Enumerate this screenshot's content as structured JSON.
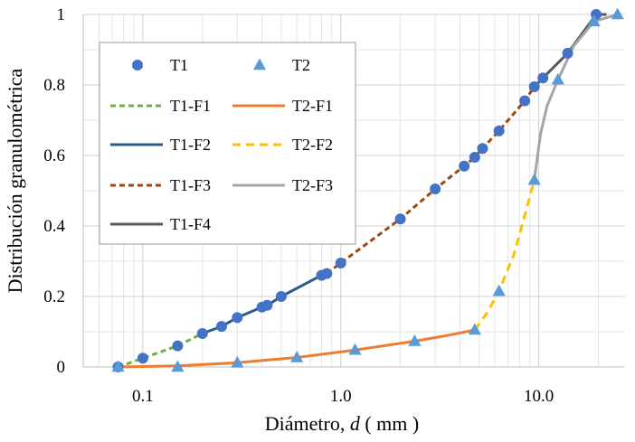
{
  "chart_data": {
    "type": "line",
    "x_scale": "log",
    "xlim": [
      0.05,
      27
    ],
    "ylim": [
      0,
      1
    ],
    "xlabel_main": "Diámetro, ",
    "xlabel_var": "d",
    "xlabel_unit": " ( mm )",
    "ylabel": "Distribución granulométrica",
    "x_ticks": [
      "0.1",
      "1.0",
      "10.0"
    ],
    "y_ticks": [
      "0",
      "0.2",
      "0.4",
      "0.6",
      "0.8",
      "1"
    ],
    "grid": true,
    "legend_position": "top-left",
    "legend_labels": {
      "T1": "T1",
      "T2": "T2",
      "T1-F1": "T1-F1",
      "T2-F1": "T2-F1",
      "T1-F2": "T1-F2",
      "T2-F2": "T2-F2",
      "T1-F3": "T1-F3",
      "T2-F3": "T2-F3",
      "T1-F4": "T1-F4"
    },
    "colors": {
      "T1": "#4472c4",
      "T2": "#5b9bd5",
      "T1-F1": "#70ad47",
      "T1-F2": "#2e5c8a",
      "T1-F3": "#9e480e",
      "T1-F4": "#595959",
      "T2-F1": "#ed7d31",
      "T2-F2": "#ffc000",
      "T2-F3": "#a5a5a5"
    },
    "series": [
      {
        "name": "T1",
        "kind": "scatter",
        "marker": "circle",
        "x": [
          0.075,
          0.1,
          0.15,
          0.2,
          0.25,
          0.3,
          0.4,
          0.425,
          0.5,
          0.8,
          0.85,
          1.0,
          2.0,
          3.0,
          4.2,
          4.75,
          5.2,
          6.3,
          8.5,
          9.5,
          10.5,
          14.0,
          19.5
        ],
        "y": [
          0.0,
          0.025,
          0.06,
          0.095,
          0.115,
          0.14,
          0.17,
          0.175,
          0.2,
          0.26,
          0.265,
          0.295,
          0.42,
          0.505,
          0.57,
          0.595,
          0.62,
          0.67,
          0.755,
          0.795,
          0.82,
          0.89,
          1.0
        ]
      },
      {
        "name": "T2",
        "kind": "scatter",
        "marker": "triangle",
        "x": [
          0.075,
          0.15,
          0.3,
          0.6,
          1.18,
          2.36,
          4.75,
          6.3,
          9.5,
          12.5,
          19.0,
          25.0
        ],
        "y": [
          0.0,
          0.0,
          0.012,
          0.027,
          0.048,
          0.073,
          0.105,
          0.215,
          0.53,
          0.815,
          0.98,
          1.0
        ]
      },
      {
        "name": "T1-F1",
        "kind": "line",
        "dash": "dashed",
        "x": [
          0.075,
          0.1,
          0.15,
          0.2
        ],
        "y": [
          0.0,
          0.025,
          0.06,
          0.095
        ]
      },
      {
        "name": "T1-F2",
        "kind": "line",
        "dash": "solid",
        "x": [
          0.2,
          0.25,
          0.3,
          0.4,
          0.425,
          0.5,
          0.8,
          0.85
        ],
        "y": [
          0.095,
          0.115,
          0.14,
          0.17,
          0.175,
          0.2,
          0.26,
          0.265
        ]
      },
      {
        "name": "T1-F3",
        "kind": "line",
        "dash": "dashed",
        "x": [
          0.85,
          1.0,
          2.0,
          3.0,
          4.2,
          4.75,
          5.2,
          6.3,
          8.5,
          9.5
        ],
        "y": [
          0.265,
          0.295,
          0.42,
          0.505,
          0.57,
          0.595,
          0.62,
          0.67,
          0.755,
          0.795
        ]
      },
      {
        "name": "T1-F4",
        "kind": "line",
        "dash": "solid",
        "x": [
          9.5,
          10.5,
          14.0,
          19.5,
          22.0
        ],
        "y": [
          0.795,
          0.82,
          0.89,
          1.0,
          1.0
        ]
      },
      {
        "name": "T2-F1",
        "kind": "line",
        "dash": "solid",
        "x": [
          0.075,
          0.15,
          0.3,
          0.6,
          1.18,
          2.36,
          3.5,
          4.75
        ],
        "y": [
          0.0,
          0.003,
          0.012,
          0.027,
          0.048,
          0.073,
          0.09,
          0.105
        ]
      },
      {
        "name": "T2-F2",
        "kind": "line",
        "dash": "dashed",
        "x": [
          4.75,
          5.5,
          6.3,
          7.5,
          8.5,
          9.5
        ],
        "y": [
          0.105,
          0.155,
          0.215,
          0.32,
          0.43,
          0.53
        ]
      },
      {
        "name": "T2-F3",
        "kind": "line",
        "dash": "solid",
        "x": [
          9.5,
          10.2,
          11.0,
          12.5,
          15.0,
          19.0,
          25.0
        ],
        "y": [
          0.53,
          0.66,
          0.74,
          0.815,
          0.91,
          0.98,
          1.0
        ]
      }
    ]
  }
}
